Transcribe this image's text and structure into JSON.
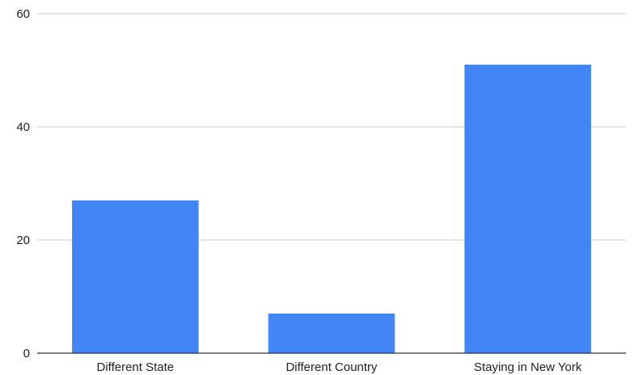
{
  "chart_data": {
    "type": "bar",
    "title": "",
    "xlabel": "",
    "ylabel": "",
    "categories": [
      "Different State",
      "Different Country",
      "Staying in New York"
    ],
    "values": [
      27,
      7,
      51
    ],
    "ylim": [
      0,
      60
    ],
    "yticks": [
      0,
      20,
      40,
      60
    ],
    "grid": true,
    "legend": "none",
    "bar_color": "#4285f4"
  }
}
